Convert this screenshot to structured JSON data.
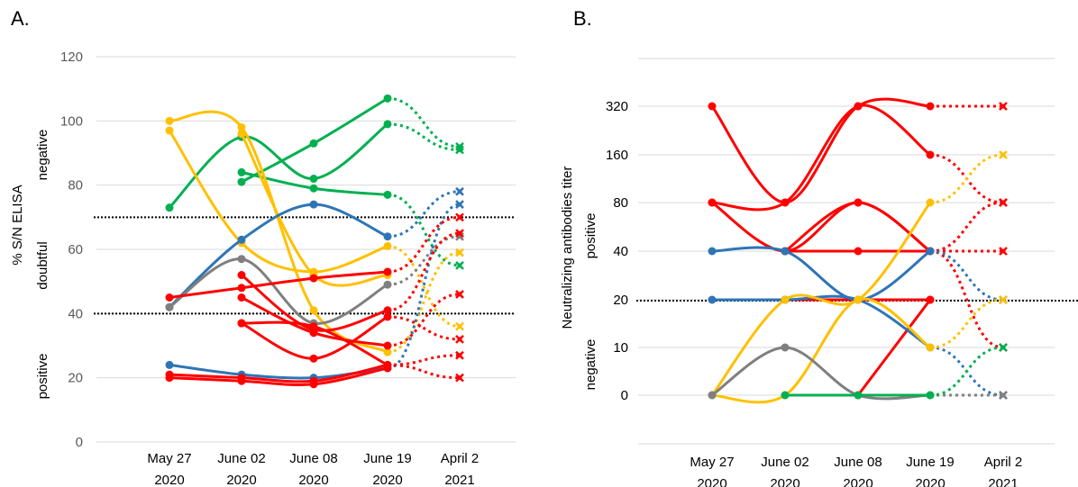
{
  "colors": {
    "red": "#ff0000",
    "yellow": "#ffc000",
    "green": "#00b050",
    "blue": "#2e75b6",
    "gray": "#7f7f7f",
    "grid": "#d9d9d9",
    "threshold": "#000000"
  },
  "panel_a": {
    "label": "A.",
    "ylabel": "% S/N ELISA",
    "band_labels": [
      "negative",
      "doubtful",
      "positive"
    ]
  },
  "panel_b": {
    "label": "B.",
    "ylabel": "Neutralizing antibodies titer",
    "band_labels": [
      "positive",
      "negative"
    ]
  },
  "chart_data": [
    {
      "type": "line",
      "title": "A.",
      "ylabel": "% S/N ELISA",
      "categories": [
        "May 27\n2020",
        "June 02\n2020",
        "June 08\n2020",
        "June 19\n2020",
        "April 2\n2021"
      ],
      "yticks": [
        0,
        20,
        40,
        60,
        80,
        100,
        120
      ],
      "ylim": [
        0,
        120
      ],
      "grid": true,
      "thresholds": [
        70,
        40
      ],
      "bands": [
        "negative",
        "doubtful",
        "positive"
      ],
      "series": [
        {
          "color": "green",
          "values": [
            73,
            95,
            82,
            99,
            91
          ]
        },
        {
          "color": "green",
          "values": [
            null,
            84,
            79,
            77,
            55
          ]
        },
        {
          "color": "green",
          "values": [
            null,
            81,
            93,
            107,
            92
          ]
        },
        {
          "color": "yellow",
          "values": [
            100,
            98,
            41,
            28,
            59
          ]
        },
        {
          "color": "yellow",
          "values": [
            97,
            62,
            53,
            61,
            36
          ]
        },
        {
          "color": "yellow",
          "values": [
            null,
            96,
            52,
            52,
            null
          ]
        },
        {
          "color": "blue",
          "values": [
            42,
            63,
            74,
            64,
            78
          ]
        },
        {
          "color": "blue",
          "values": [
            24,
            21,
            20,
            23,
            74
          ]
        },
        {
          "color": "gray",
          "values": [
            42,
            57,
            37,
            49,
            64
          ]
        },
        {
          "color": "red",
          "values": [
            45,
            48,
            51,
            53,
            70
          ]
        },
        {
          "color": "red",
          "values": [
            null,
            52,
            35,
            41,
            65
          ]
        },
        {
          "color": "red",
          "values": [
            null,
            45,
            34,
            30,
            46
          ]
        },
        {
          "color": "red",
          "values": [
            null,
            37,
            26,
            39,
            32
          ]
        },
        {
          "color": "red",
          "values": [
            null,
            37,
            36,
            24,
            27
          ]
        },
        {
          "color": "red",
          "values": [
            21,
            20,
            19,
            24,
            20
          ]
        },
        {
          "color": "red",
          "values": [
            20,
            19,
            18,
            23,
            null
          ]
        }
      ]
    },
    {
      "type": "line",
      "title": "B.",
      "ylabel": "Neutralizing antibodies titer",
      "categories": [
        "May 27\n2020",
        "June 02\n2020",
        "June 08\n2020",
        "June 19\n2020",
        "April 2\n2021"
      ],
      "yticks": [
        0,
        10,
        20,
        40,
        80,
        160,
        320
      ],
      "grid": true,
      "thresholds": [
        20
      ],
      "bands": [
        "positive",
        "negative"
      ],
      "series": [
        {
          "color": "red",
          "values": [
            320,
            80,
            320,
            320,
            320
          ]
        },
        {
          "color": "red",
          "values": [
            80,
            80,
            320,
            160,
            80
          ]
        },
        {
          "color": "red",
          "values": [
            80,
            40,
            80,
            40,
            40
          ]
        },
        {
          "color": "red",
          "values": [
            null,
            40,
            80,
            40,
            80
          ]
        },
        {
          "color": "red",
          "values": [
            null,
            40,
            40,
            40,
            10
          ]
        },
        {
          "color": "red",
          "values": [
            null,
            20,
            20,
            20,
            null
          ]
        },
        {
          "color": "red",
          "values": [
            null,
            null,
            0,
            20,
            null
          ]
        },
        {
          "color": "blue",
          "values": [
            40,
            40,
            20,
            40,
            20
          ]
        },
        {
          "color": "blue",
          "values": [
            20,
            20,
            20,
            10,
            0
          ]
        },
        {
          "color": "yellow",
          "values": [
            0,
            20,
            20,
            80,
            160
          ]
        },
        {
          "color": "yellow",
          "values": [
            0,
            0,
            20,
            10,
            20
          ]
        },
        {
          "color": "gray",
          "values": [
            0,
            10,
            0,
            0,
            0
          ]
        },
        {
          "color": "green",
          "values": [
            null,
            0,
            0,
            0,
            10
          ]
        }
      ]
    }
  ]
}
